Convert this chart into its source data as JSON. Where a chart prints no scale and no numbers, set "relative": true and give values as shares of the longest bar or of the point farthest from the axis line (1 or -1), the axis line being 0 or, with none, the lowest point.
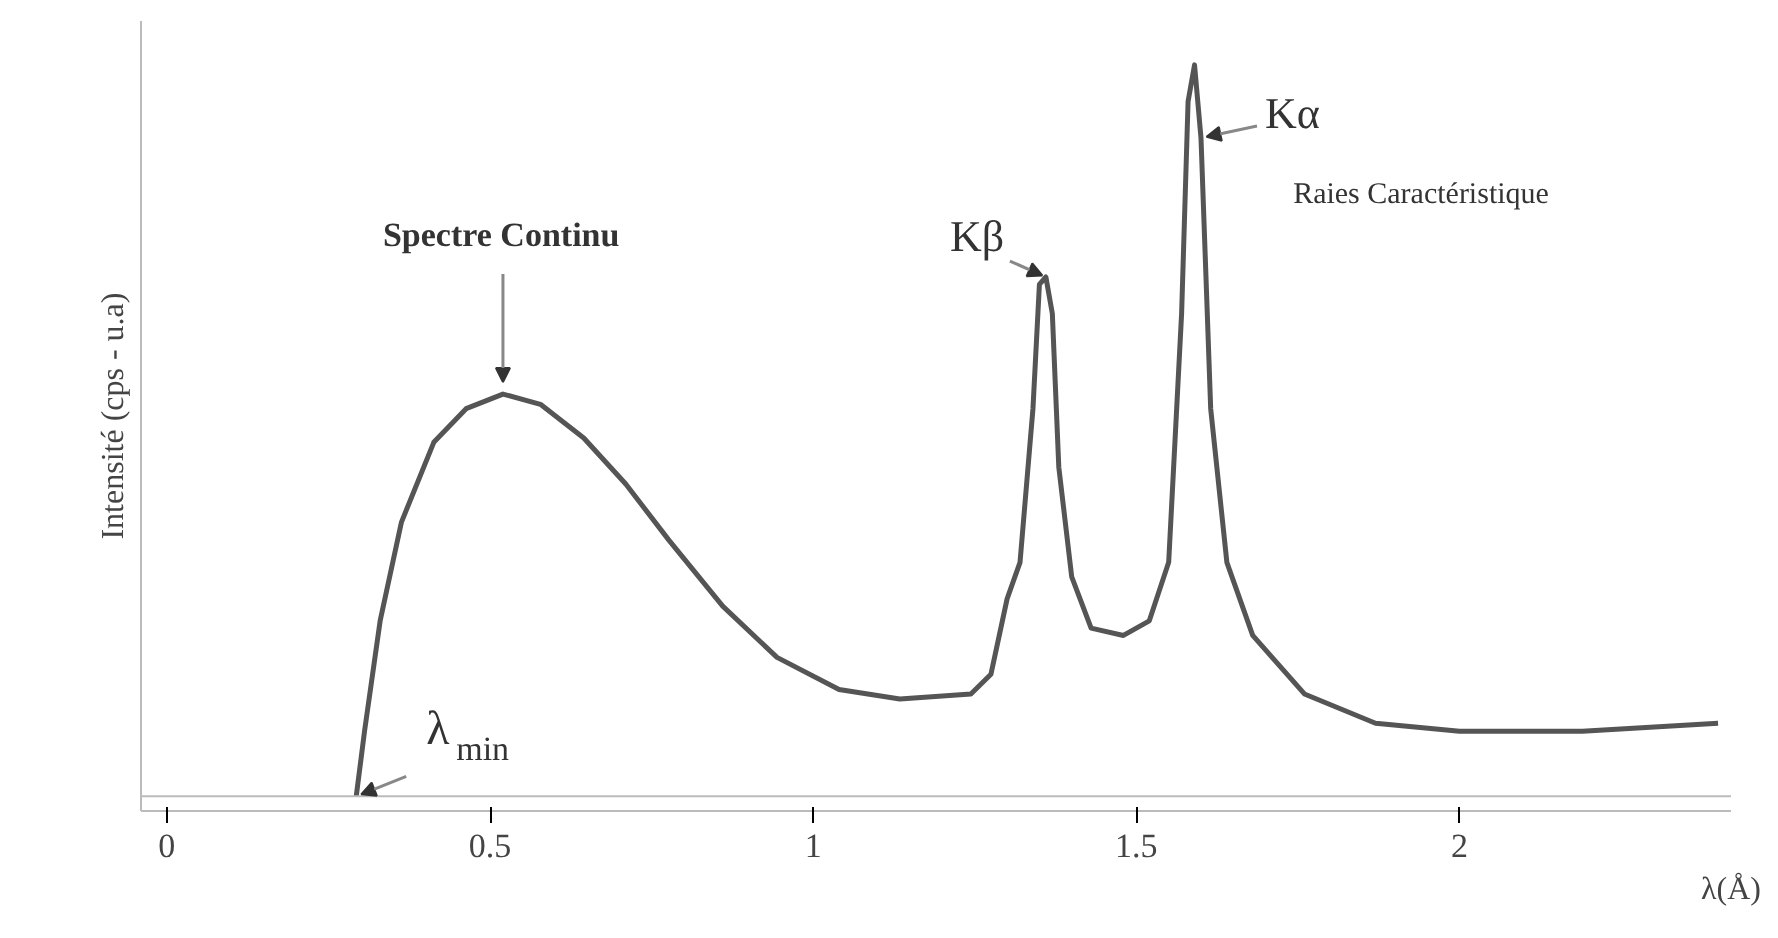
{
  "chart_data": {
    "type": "line",
    "relative": true,
    "xlabel": "λ(Å)",
    "ylabel": "Intensité (cps - u.a)",
    "x": [
      0.293,
      0.306,
      0.33,
      0.363,
      0.413,
      0.463,
      0.52,
      0.578,
      0.645,
      0.71,
      0.777,
      0.86,
      0.944,
      1.04,
      1.134,
      1.244,
      1.275,
      1.3,
      1.32,
      1.34,
      1.35,
      1.36,
      1.37,
      1.38,
      1.4,
      1.43,
      1.48,
      1.52,
      1.55,
      1.57,
      1.58,
      1.59,
      1.6,
      1.615,
      1.64,
      1.68,
      1.76,
      1.87,
      2.0,
      2.19,
      2.4
    ],
    "series": [
      {
        "color": "#555555",
        "values": [
          0,
          0.09,
          0.24,
          0.375,
          0.484,
          0.53,
          0.55,
          0.536,
          0.49,
          0.427,
          0.35,
          0.26,
          0.19,
          0.146,
          0.133,
          0.14,
          0.167,
          0.27,
          0.32,
          0.53,
          0.7,
          0.71,
          0.66,
          0.45,
          0.3,
          0.23,
          0.22,
          0.24,
          0.32,
          0.66,
          0.95,
          1.0,
          0.9,
          0.53,
          0.32,
          0.22,
          0.14,
          0.1,
          0.089,
          0.089,
          0.1
        ]
      }
    ],
    "xlim": [
      -0.04,
      2.42
    ],
    "xticks": [
      0,
      0.5,
      1,
      1.5,
      2
    ],
    "grid": false,
    "marker": "none",
    "line_style": "solid",
    "annotations": [
      {
        "text": "Spectre Continu",
        "x": 0.52,
        "y": 0.55
      },
      {
        "text": "Kβ",
        "x": 1.36,
        "y": 0.71
      },
      {
        "text": "Kα",
        "x": 1.6,
        "y": 0.9
      },
      {
        "text": "λ$_{min}$",
        "x": 0.293,
        "y": 0
      },
      "Raies Caractéristique"
    ]
  }
}
